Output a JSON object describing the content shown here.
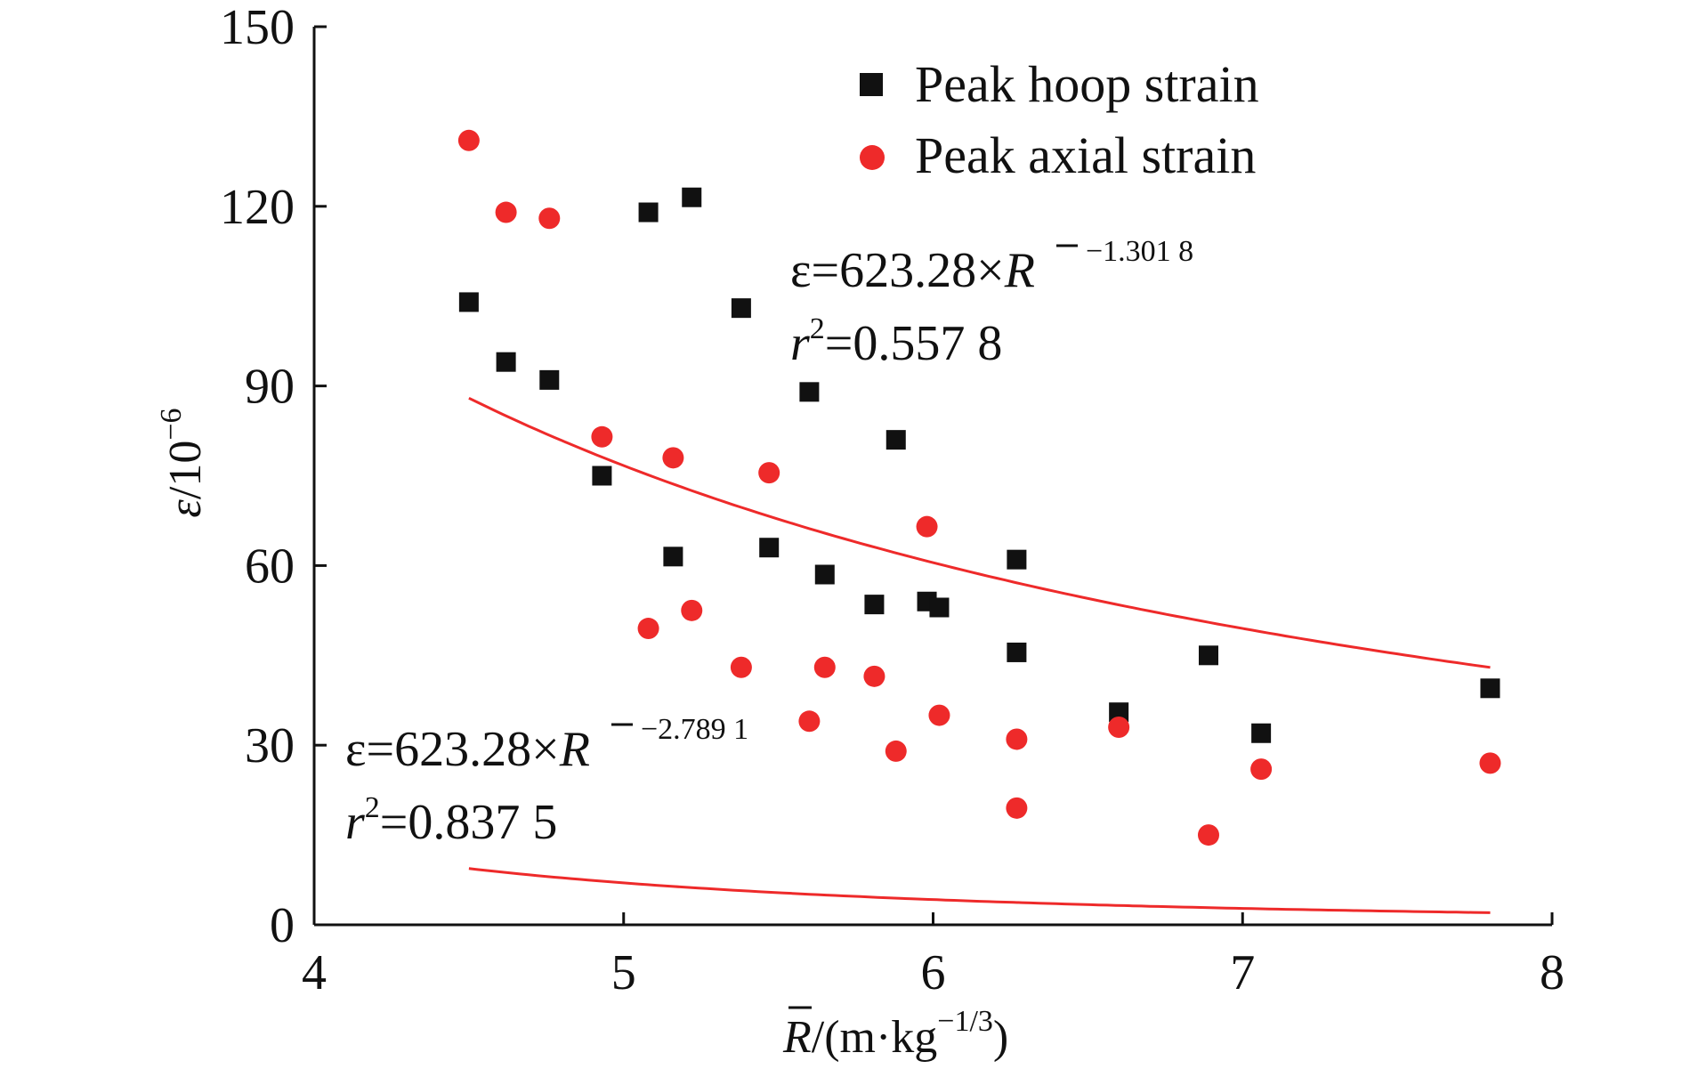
{
  "chart_data": {
    "type": "scatter",
    "title": "",
    "xlabel": "R̄/(m·kg−1/3)",
    "ylabel": "ε/10−6",
    "x_label_parts": {
      "symbol": "R",
      "unit_open": "/(m·kg",
      "exponent": "−1/3",
      "unit_close": ")"
    },
    "y_label_parts": {
      "symbol": "ε",
      "base": "/10",
      "exponent": "−6"
    },
    "xlim": [
      4,
      8
    ],
    "ylim": [
      0,
      150
    ],
    "x_ticks": [
      "4",
      "5",
      "6",
      "7",
      "8"
    ],
    "y_ticks": [
      "0",
      "30",
      "60",
      "90",
      "120",
      "150"
    ],
    "grid": false,
    "legend_position": "top-right",
    "series": [
      {
        "name": "Peak hoop strain",
        "marker": "square",
        "color": "#111111",
        "x": [
          4.5,
          4.62,
          4.76,
          4.93,
          5.08,
          5.16,
          5.22,
          5.38,
          5.47,
          5.6,
          5.65,
          5.81,
          5.88,
          5.98,
          6.02,
          6.27,
          6.27,
          6.6,
          6.89,
          7.06,
          7.8
        ],
        "y": [
          104,
          94,
          91,
          75,
          119,
          61.5,
          121.5,
          103,
          63,
          89,
          58.5,
          53.5,
          81,
          54,
          53,
          61,
          45.5,
          35.5,
          45,
          32,
          39.5
        ]
      },
      {
        "name": "Peak axial strain",
        "marker": "circle",
        "color": "#ee2a2a",
        "x": [
          4.5,
          4.62,
          4.76,
          4.93,
          5.08,
          5.16,
          5.22,
          5.38,
          5.47,
          5.6,
          5.65,
          5.81,
          5.88,
          5.98,
          6.02,
          6.27,
          6.27,
          6.6,
          6.89,
          7.06,
          7.8
        ],
        "y": [
          131,
          119,
          118,
          81.5,
          49.5,
          78,
          52.5,
          43,
          75.5,
          34,
          43,
          41.5,
          29,
          66.5,
          35,
          31,
          19.5,
          33,
          15,
          26,
          27
        ]
      }
    ],
    "fits": [
      {
        "series": "Peak hoop strain",
        "coef": 623.28,
        "exponent": -1.3018,
        "x_range": [
          4.5,
          7.8
        ],
        "color": "#ee2a2a",
        "equation_parts": {
          "lhs": "ε=623.28×",
          "symbol": "R",
          "power": "−1.301 8"
        },
        "r2_parts": {
          "r": "r",
          "sq": "2",
          "value": "=0.557 8"
        }
      },
      {
        "series": "Peak axial strain",
        "coef": 623.28,
        "exponent": -2.7891,
        "x_range": [
          4.5,
          7.8
        ],
        "color": "#ee2a2a",
        "equation_parts": {
          "lhs": "ε=623.28×",
          "symbol": "R",
          "power": "−2.789 1"
        },
        "r2_parts": {
          "r": "r",
          "sq": "2",
          "value": "=0.837 5"
        }
      }
    ]
  }
}
